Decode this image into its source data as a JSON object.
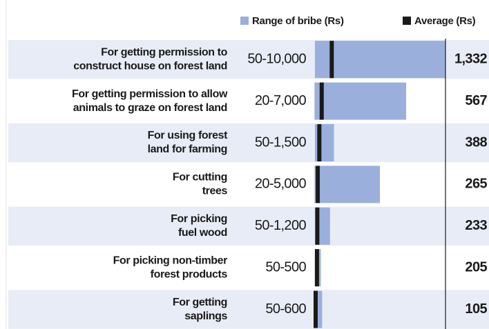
{
  "chart_data": {
    "type": "range_bar",
    "categories": [
      [
        "For getting permission to",
        "construct house on forest land"
      ],
      [
        "For getting permission to allow",
        "animals to graze on forest land"
      ],
      [
        "For using forest",
        "land for farming"
      ],
      [
        "For cutting",
        "trees"
      ],
      [
        "For picking",
        "fuel wood"
      ],
      [
        "For picking non-timber",
        "forest products"
      ],
      [
        "For getting",
        "saplings"
      ]
    ],
    "series": [
      {
        "name": "Range of bribe (Rs)",
        "color": "#9aafdc",
        "low": [
          50,
          20,
          50,
          20,
          50,
          50,
          50
        ],
        "high": [
          10000,
          7000,
          1500,
          5000,
          1200,
          500,
          600
        ],
        "value_labels": [
          "50-10,000",
          "20-7,000",
          "50-1,500",
          "20-5,000",
          "50-1,200",
          "50-500",
          "50-600"
        ]
      },
      {
        "name": "Average (Rs)",
        "color": "#1a1a1a",
        "values": [
          1332,
          567,
          388,
          265,
          233,
          205,
          105
        ],
        "value_labels": [
          "1,332",
          "567",
          "388",
          "265",
          "233",
          "205",
          "105"
        ]
      }
    ],
    "xlim": [
      0,
      10000
    ]
  }
}
